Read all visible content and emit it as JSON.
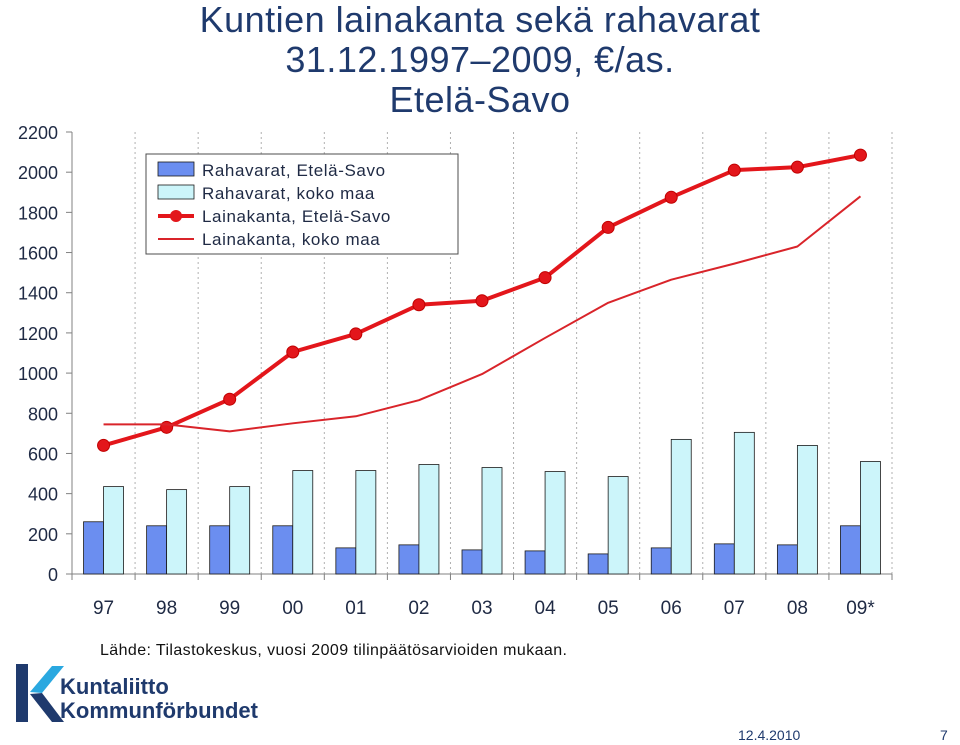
{
  "header": {
    "title_line1": "Kuntien lainakanta sekä rahavarat",
    "title_line2": "31.12.1997–2009, €/as.",
    "title_line3": "Etelä-Savo"
  },
  "chart_data": {
    "type": "bar",
    "categories": [
      "97",
      "98",
      "99",
      "00",
      "01",
      "02",
      "03",
      "04",
      "05",
      "06",
      "07",
      "08",
      "09*"
    ],
    "ylim": [
      0,
      2200
    ],
    "yticks": [
      0,
      200,
      400,
      600,
      800,
      1000,
      1200,
      1400,
      1600,
      1800,
      2000,
      2200
    ],
    "legend_position": "top-left",
    "grid": {
      "horizontal": false,
      "vertical": true
    },
    "series": [
      {
        "name": "Rahavarat, Etelä-Savo",
        "kind": "bar",
        "color": "#6b8ef0",
        "values": [
          260,
          240,
          240,
          240,
          130,
          145,
          120,
          115,
          100,
          130,
          150,
          145,
          240
        ]
      },
      {
        "name": "Rahavarat, koko maa",
        "kind": "bar",
        "color": "#ccf5fa",
        "values": [
          435,
          420,
          435,
          515,
          515,
          545,
          530,
          510,
          485,
          670,
          705,
          640,
          560
        ]
      },
      {
        "name": "Lainakanta, Etelä-Savo",
        "kind": "line-marker",
        "color": "#e3161b",
        "values": [
          640,
          730,
          870,
          1105,
          1195,
          1340,
          1360,
          1475,
          1725,
          1875,
          2010,
          2025,
          2085
        ]
      },
      {
        "name": "Lainakanta, koko maa",
        "kind": "line",
        "color": "#d9242a",
        "values": [
          745,
          745,
          710,
          750,
          785,
          865,
          995,
          1175,
          1350,
          1465,
          1545,
          1630,
          1880
        ]
      }
    ]
  },
  "source_note": "Lähde: Tilastokeskus, vuosi 2009 tilinpäätösarvioiden mukaan.",
  "logo": {
    "line1": "Kuntaliitto",
    "line2": "Kommunförbundet",
    "icon": "kuntaliitto-k-logo"
  },
  "footer": {
    "date": "12.4.2010",
    "page": "7"
  }
}
